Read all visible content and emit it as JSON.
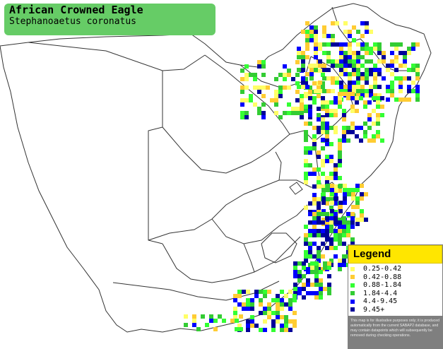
{
  "title": {
    "common_name": "African Crowned Eagle",
    "scientific_name": "Stephanoaetus coronatus"
  },
  "legend": {
    "heading": "Legend",
    "items": [
      {
        "label": "0.25-0.42",
        "color": "#ffff66"
      },
      {
        "label": "0.42-0.88",
        "color": "#ffcc33"
      },
      {
        "label": "0.88-1.84",
        "color": "#33ff33"
      },
      {
        "label": "1.84-4.4",
        "color": "#33cc33"
      },
      {
        "label": "4.4-9.45",
        "color": "#0000ff"
      },
      {
        "label": "9.45+",
        "color": "#000099"
      }
    ],
    "note": "This map is for illustrative purposes only; it is produced automatically from the current SABAP2 database, and may contain datapoints which will subsequently be removed during checking operations."
  },
  "colors": {
    "title_background": "#66cc66",
    "legend_heading_background": "#ffe600",
    "land_outline": "#333333"
  }
}
